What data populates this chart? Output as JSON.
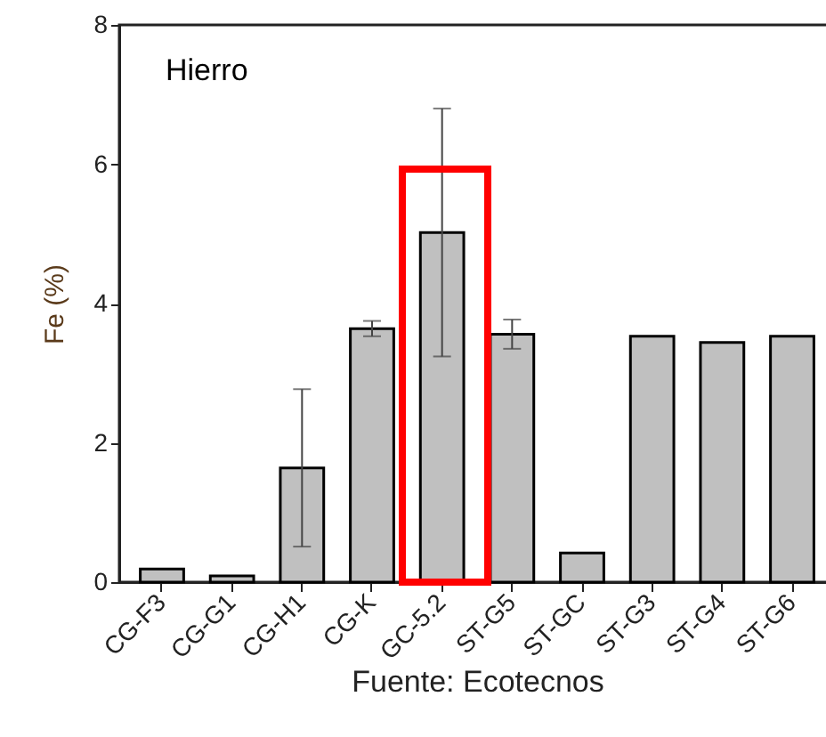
{
  "chart_data": {
    "type": "bar",
    "title": "Hierro",
    "xlabel": "Fuente: Ecotecnos",
    "ylabel": "Fe (%)",
    "categories": [
      "CG-F3",
      "CG-G1",
      "CG-H1",
      "CG-K",
      "GC-5.2",
      "ST-G5",
      "ST-GC",
      "ST-G3",
      "ST-G4",
      "ST-G6"
    ],
    "values": [
      0.19,
      0.09,
      1.64,
      3.64,
      5.02,
      3.56,
      0.42,
      3.53,
      3.44,
      3.53
    ],
    "errors": [
      null,
      null,
      1.13,
      0.11,
      1.78,
      0.21,
      null,
      null,
      null,
      null
    ],
    "color": "#c0c0c0",
    "ylim": [
      0,
      8
    ],
    "yticks": [
      0,
      2,
      4,
      6,
      8
    ],
    "grid": false
  }
}
